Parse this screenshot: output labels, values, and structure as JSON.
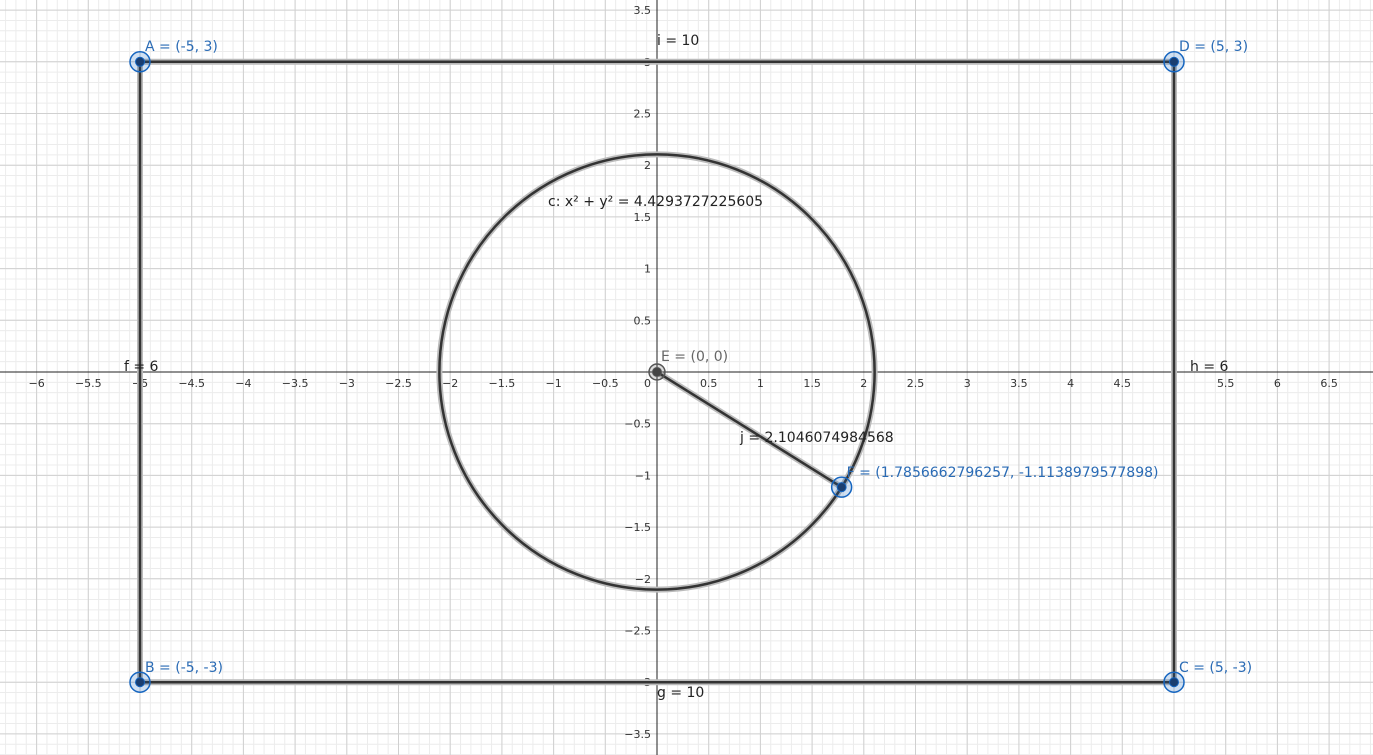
{
  "axes": {
    "x_ticks": [
      {
        "value": -6,
        "label": "−6"
      },
      {
        "value": -5.5,
        "label": "−5.5"
      },
      {
        "value": -5,
        "label": "−5"
      },
      {
        "value": -4.5,
        "label": "−4.5"
      },
      {
        "value": -4,
        "label": "−4"
      },
      {
        "value": -3.5,
        "label": "−3.5"
      },
      {
        "value": -3,
        "label": "−3"
      },
      {
        "value": -2.5,
        "label": "−2.5"
      },
      {
        "value": -2,
        "label": "−2"
      },
      {
        "value": -1.5,
        "label": "−1.5"
      },
      {
        "value": -1,
        "label": "−1"
      },
      {
        "value": -0.5,
        "label": "−0.5"
      },
      {
        "value": 0,
        "label": "0"
      },
      {
        "value": 0.5,
        "label": "0.5"
      },
      {
        "value": 1,
        "label": "1"
      },
      {
        "value": 1.5,
        "label": "1.5"
      },
      {
        "value": 2,
        "label": "2"
      },
      {
        "value": 2.5,
        "label": "2.5"
      },
      {
        "value": 3,
        "label": "3"
      },
      {
        "value": 3.5,
        "label": "3.5"
      },
      {
        "value": 4,
        "label": "4"
      },
      {
        "value": 4.5,
        "label": "4.5"
      },
      {
        "value": 5,
        "label": "5"
      },
      {
        "value": 5.5,
        "label": "5.5"
      },
      {
        "value": 6,
        "label": "6"
      },
      {
        "value": 6.5,
        "label": "6.5"
      }
    ],
    "y_ticks": [
      {
        "value": 3.5,
        "label": "3.5"
      },
      {
        "value": 3,
        "label": "3"
      },
      {
        "value": 2.5,
        "label": "2.5"
      },
      {
        "value": 2,
        "label": "2"
      },
      {
        "value": 1.5,
        "label": "1.5"
      },
      {
        "value": 1,
        "label": "1"
      },
      {
        "value": 0.5,
        "label": "0.5"
      },
      {
        "value": -0.5,
        "label": "−0.5"
      },
      {
        "value": -1,
        "label": "−1"
      },
      {
        "value": -1.5,
        "label": "−1.5"
      },
      {
        "value": -2,
        "label": "−2"
      },
      {
        "value": -2.5,
        "label": "−2.5"
      },
      {
        "value": -3,
        "label": "−3"
      },
      {
        "value": -3.5,
        "label": "−3.5"
      }
    ]
  },
  "points": [
    {
      "name": "A",
      "x": -5,
      "y": 3,
      "label": "A = (-5, 3)"
    },
    {
      "name": "B",
      "x": -5,
      "y": -3,
      "label": "B = (-5, -3)"
    },
    {
      "name": "C",
      "x": 5,
      "y": -3,
      "label": "C = (5, -3)"
    },
    {
      "name": "D",
      "x": 5,
      "y": 3,
      "label": "D = (5, 3)"
    },
    {
      "name": "E",
      "x": 0,
      "y": 0,
      "label": "E = (0, 0)"
    },
    {
      "name": "F",
      "x": 1.7856662796257,
      "y": -1.1138979577898,
      "label": "F = (1.7856662796257, -1.1138979577898)"
    }
  ],
  "segments": [
    {
      "label": "i = 10"
    },
    {
      "label": "g = 10"
    },
    {
      "label": "f = 6"
    },
    {
      "label": "h = 6"
    },
    {
      "label": "j = 2.1046074984568"
    }
  ],
  "circle": {
    "label": "c: x² + y² = 4.4293727225605"
  }
}
